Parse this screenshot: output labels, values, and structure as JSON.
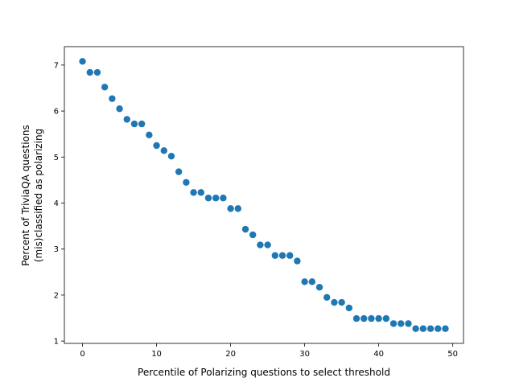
{
  "chart_data": {
    "type": "scatter",
    "xlabel": "Percentile of Polarizing questions to select threshold",
    "ylabel": [
      "Percent of TriviaQA questions",
      "(mis)classified as polarizing"
    ],
    "xlim": [
      -2.45,
      51.45
    ],
    "ylim": [
      0.95,
      7.4
    ],
    "xticks": [
      0,
      10,
      20,
      30,
      40,
      50
    ],
    "yticks": [
      1,
      2,
      3,
      4,
      5,
      6,
      7
    ],
    "grid": false,
    "marker_color": "#1f77b4",
    "x": [
      0,
      1,
      2,
      3,
      4,
      5,
      6,
      7,
      8,
      9,
      10,
      11,
      12,
      13,
      14,
      15,
      16,
      17,
      18,
      19,
      20,
      21,
      22,
      23,
      24,
      25,
      26,
      27,
      28,
      29,
      30,
      31,
      32,
      33,
      34,
      35,
      36,
      37,
      38,
      39,
      40,
      41,
      42,
      43,
      44,
      45,
      46,
      47,
      48,
      49
    ],
    "y": [
      7.08,
      6.84,
      6.84,
      6.52,
      6.27,
      6.05,
      5.82,
      5.72,
      5.72,
      5.48,
      5.25,
      5.14,
      5.02,
      4.68,
      4.45,
      4.23,
      4.23,
      4.11,
      4.11,
      4.11,
      3.88,
      3.88,
      3.43,
      3.31,
      3.09,
      3.09,
      2.86,
      2.86,
      2.86,
      2.74,
      2.29,
      2.29,
      2.17,
      1.95,
      1.84,
      1.84,
      1.72,
      1.49,
      1.49,
      1.49,
      1.49,
      1.49,
      1.38,
      1.38,
      1.38,
      1.27,
      1.27,
      1.27,
      1.27,
      1.27
    ]
  }
}
